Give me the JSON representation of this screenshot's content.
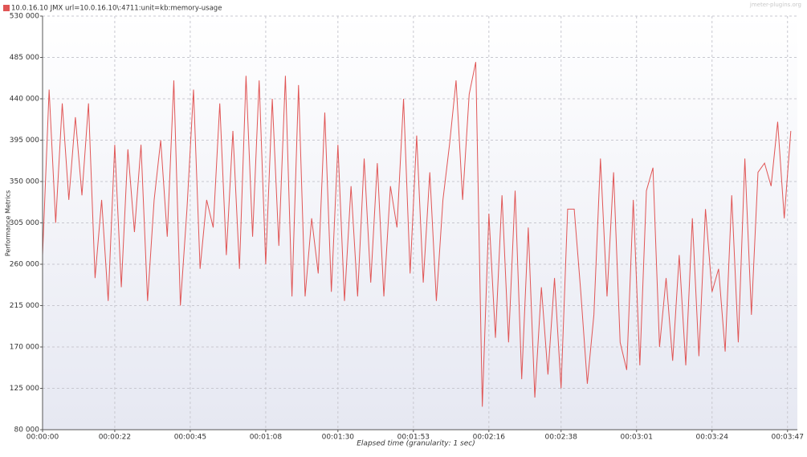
{
  "chart_data": {
    "type": "line",
    "watermark": "jmeter-plugins.org",
    "x_label": "Elapsed time (granularity: 1 sec)",
    "y_label": "Performance Metrics",
    "xlim": [
      0,
      230
    ],
    "ylim": [
      80000,
      530000
    ],
    "grid": true,
    "legend": "top-left",
    "xticks": [
      {
        "value": 0,
        "label": "00:00:00"
      },
      {
        "value": 22,
        "label": "00:00:22"
      },
      {
        "value": 45,
        "label": "00:00:45"
      },
      {
        "value": 68,
        "label": "00:01:08"
      },
      {
        "value": 90,
        "label": "00:01:30"
      },
      {
        "value": 113,
        "label": "00:01:53"
      },
      {
        "value": 136,
        "label": "00:02:16"
      },
      {
        "value": 158,
        "label": "00:02:38"
      },
      {
        "value": 181,
        "label": "00:03:01"
      },
      {
        "value": 204,
        "label": "00:03:24"
      },
      {
        "value": 227,
        "label": "00:03:47"
      }
    ],
    "yticks": [
      {
        "value": 80000,
        "label": "80 000"
      },
      {
        "value": 125000,
        "label": "125 000"
      },
      {
        "value": 170000,
        "label": "170 000"
      },
      {
        "value": 215000,
        "label": "215 000"
      },
      {
        "value": 260000,
        "label": "260 000"
      },
      {
        "value": 305000,
        "label": "305 000"
      },
      {
        "value": 350000,
        "label": "350 000"
      },
      {
        "value": 395000,
        "label": "395 000"
      },
      {
        "value": 440000,
        "label": "440 000"
      },
      {
        "value": 485000,
        "label": "485 000"
      },
      {
        "value": 530000,
        "label": "530 000"
      }
    ],
    "x": [
      0,
      2,
      4,
      6,
      8,
      10,
      12,
      14,
      16,
      18,
      20,
      22,
      24,
      26,
      28,
      30,
      32,
      34,
      36,
      38,
      40,
      42,
      44,
      46,
      48,
      50,
      52,
      54,
      56,
      58,
      60,
      62,
      64,
      66,
      68,
      70,
      72,
      74,
      76,
      78,
      80,
      82,
      84,
      86,
      88,
      90,
      92,
      94,
      96,
      98,
      100,
      102,
      104,
      106,
      108,
      110,
      112,
      114,
      116,
      118,
      120,
      122,
      124,
      126,
      128,
      130,
      132,
      134,
      136,
      138,
      140,
      142,
      144,
      146,
      148,
      150,
      152,
      154,
      156,
      158,
      160,
      162,
      164,
      166,
      168,
      170,
      172,
      174,
      176,
      178,
      180,
      182,
      184,
      186,
      188,
      190,
      192,
      194,
      196,
      198,
      200,
      202,
      204,
      206,
      208,
      210,
      212,
      214,
      216,
      218,
      220,
      222,
      224,
      226,
      228
    ],
    "series": [
      {
        "name": "10.0.16.10 JMX url=10.0.16.10\\:4711:unit=kb:memory-usage",
        "color": "#e05555",
        "values": [
          270000,
          450000,
          305000,
          435000,
          330000,
          420000,
          335000,
          435000,
          245000,
          330000,
          220000,
          390000,
          235000,
          385000,
          295000,
          390000,
          220000,
          330000,
          395000,
          290000,
          460000,
          215000,
          320000,
          450000,
          255000,
          330000,
          300000,
          435000,
          270000,
          405000,
          255000,
          465000,
          290000,
          460000,
          260000,
          440000,
          280000,
          465000,
          225000,
          455000,
          225000,
          310000,
          250000,
          425000,
          230000,
          390000,
          220000,
          345000,
          225000,
          375000,
          240000,
          370000,
          225000,
          345000,
          300000,
          440000,
          250000,
          400000,
          240000,
          360000,
          220000,
          330000,
          390000,
          460000,
          330000,
          445000,
          480000,
          105000,
          315000,
          180000,
          335000,
          175000,
          340000,
          135000,
          300000,
          115000,
          235000,
          140000,
          245000,
          125000,
          320000,
          320000,
          230000,
          130000,
          205000,
          375000,
          225000,
          360000,
          175000,
          145000,
          330000,
          150000,
          340000,
          365000,
          170000,
          245000,
          155000,
          270000,
          150000,
          310000,
          160000,
          320000,
          230000,
          255000,
          165000,
          335000,
          175000,
          375000,
          205000,
          360000,
          370000,
          345000,
          415000,
          310000,
          405000
        ]
      }
    ]
  }
}
